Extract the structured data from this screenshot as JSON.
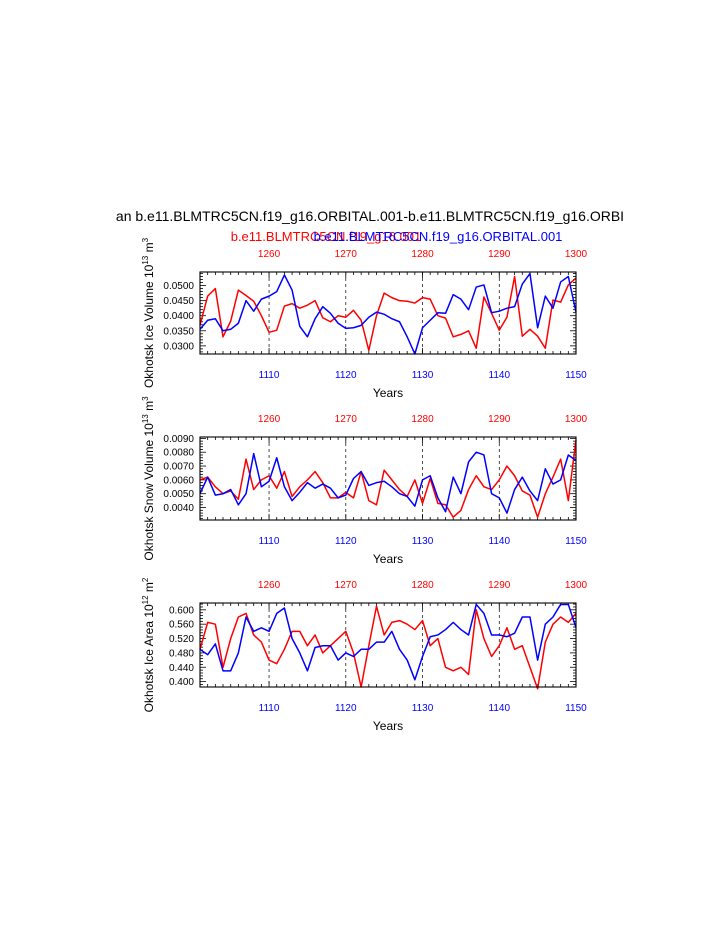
{
  "page_title": "an b.e11.BLMTRC5CN.f19_g16.ORBITAL.001-b.e11.BLMTRC5CN.f19_g16.ORBI",
  "legend": {
    "red_run": "b.e11.BLMTRC5CN.f19_g16.001",
    "blue_run": "b.e11.BLMTRC5CN.f19_g16.ORBITAL.001"
  },
  "colors": {
    "red": "#ff0000",
    "blue": "#0000ff",
    "axis": "#000000",
    "grid": "#000000"
  },
  "chart_data": [
    {
      "type": "line",
      "title": "Okhotsk Ice Volume",
      "ylabel": "Okhotsk Ice Volume 10",
      "ylabel_exp": "13",
      "ylabel_unit": " m",
      "ylabel_unit_exp": "3",
      "xlabel": "Years",
      "ylim": [
        0.0273,
        0.0545
      ],
      "yticks": [
        0.03,
        0.035,
        0.04,
        0.045,
        0.05
      ],
      "yticklabels": [
        "0.0300",
        "0.0350",
        "0.0400",
        "0.0450",
        "0.0500"
      ],
      "x_bottom": {
        "range": [
          1101,
          1150
        ],
        "ticks": [
          1110,
          1120,
          1130,
          1140,
          1150
        ],
        "color": "blue"
      },
      "x_top": {
        "range": [
          1251,
          1300
        ],
        "ticks": [
          1260,
          1270,
          1280,
          1290,
          1300
        ],
        "color": "red"
      },
      "grid": "dashed vertical at decade ticks",
      "series": [
        {
          "name": "b.e11.BLMTRC5CN.f19_g16.001",
          "color": "red",
          "x_axis": "top",
          "x_start": 1251,
          "values": [
            0.0368,
            0.0465,
            0.049,
            0.033,
            0.0382,
            0.0485,
            0.0467,
            0.0448,
            0.04,
            0.0345,
            0.0352,
            0.0432,
            0.044,
            0.0425,
            0.0435,
            0.045,
            0.0393,
            0.038,
            0.04,
            0.0395,
            0.0418,
            0.0385,
            0.0285,
            0.04,
            0.0475,
            0.046,
            0.045,
            0.0448,
            0.0442,
            0.046,
            0.0455,
            0.04,
            0.0392,
            0.033,
            0.0338,
            0.035,
            0.0292,
            0.0462,
            0.0408,
            0.0352,
            0.0395,
            0.053,
            0.0332,
            0.0355,
            0.0332,
            0.0292,
            0.0452,
            0.0445,
            0.0502,
            0.0525
          ]
        },
        {
          "name": "b.e11.BLMTRC5CN.f19_g16.ORBITAL.001",
          "color": "blue",
          "x_axis": "bottom",
          "x_start": 1101,
          "values": [
            0.0355,
            0.0385,
            0.039,
            0.035,
            0.0355,
            0.0375,
            0.045,
            0.0415,
            0.0455,
            0.0465,
            0.048,
            0.0535,
            0.0485,
            0.0365,
            0.033,
            0.039,
            0.043,
            0.0408,
            0.0375,
            0.0358,
            0.036,
            0.0368,
            0.0395,
            0.0412,
            0.0405,
            0.039,
            0.038,
            0.033,
            0.0273,
            0.036,
            0.0385,
            0.041,
            0.0408,
            0.047,
            0.0455,
            0.042,
            0.0495,
            0.0502,
            0.041,
            0.0415,
            0.0425,
            0.043,
            0.0505,
            0.054,
            0.036,
            0.0465,
            0.0425,
            0.0512,
            0.053,
            0.0412
          ]
        }
      ]
    },
    {
      "type": "line",
      "title": "Okhotsk Snow Volume",
      "ylabel": "Okhotsk Snow Volume 10",
      "ylabel_exp": "13",
      "ylabel_unit": " m",
      "ylabel_unit_exp": "3",
      "xlabel": "Years",
      "ylim": [
        0.0031,
        0.0091
      ],
      "yticks": [
        0.004,
        0.005,
        0.006,
        0.007,
        0.008,
        0.009
      ],
      "yticklabels": [
        "0.0040",
        "0.0050",
        "0.0060",
        "0.0070",
        "0.0080",
        "0.0090"
      ],
      "x_bottom": {
        "range": [
          1101,
          1150
        ],
        "ticks": [
          1110,
          1120,
          1130,
          1140,
          1150
        ],
        "color": "blue"
      },
      "x_top": {
        "range": [
          1251,
          1300
        ],
        "ticks": [
          1260,
          1270,
          1280,
          1290,
          1300
        ],
        "color": "red"
      },
      "grid": "dashed vertical at decade ticks",
      "series": [
        {
          "name": "b.e11.BLMTRC5CN.f19_g16.001",
          "color": "red",
          "x_axis": "top",
          "x_start": 1251,
          "values": [
            0.006,
            0.0062,
            0.0055,
            0.005,
            0.0052,
            0.0046,
            0.0075,
            0.0053,
            0.006,
            0.0063,
            0.0054,
            0.0066,
            0.0048,
            0.0055,
            0.006,
            0.0066,
            0.0058,
            0.0047,
            0.0047,
            0.0051,
            0.0047,
            0.0066,
            0.0045,
            0.0042,
            0.0067,
            0.006,
            0.0053,
            0.0048,
            0.006,
            0.0043,
            0.0061,
            0.0043,
            0.0042,
            0.0033,
            0.0038,
            0.0053,
            0.0063,
            0.0055,
            0.0053,
            0.006,
            0.007,
            0.0063,
            0.0052,
            0.0049,
            0.0033,
            0.005,
            0.0062,
            0.0075,
            0.0045,
            0.0089
          ]
        },
        {
          "name": "b.e11.BLMTRC5CN.f19_g16.ORBITAL.001",
          "color": "blue",
          "x_axis": "bottom",
          "x_start": 1101,
          "values": [
            0.005,
            0.0062,
            0.0049,
            0.005,
            0.0053,
            0.0042,
            0.005,
            0.0079,
            0.0055,
            0.0059,
            0.0076,
            0.0055,
            0.0045,
            0.0051,
            0.0058,
            0.0054,
            0.0057,
            0.0054,
            0.0047,
            0.0049,
            0.0061,
            0.0066,
            0.0056,
            0.0058,
            0.0059,
            0.0055,
            0.005,
            0.0048,
            0.0041,
            0.006,
            0.0063,
            0.0047,
            0.0037,
            0.0062,
            0.005,
            0.0073,
            0.008,
            0.0078,
            0.005,
            0.0047,
            0.0036,
            0.0053,
            0.0062,
            0.0052,
            0.0045,
            0.0068,
            0.0057,
            0.006,
            0.0078,
            0.0074
          ]
        }
      ]
    },
    {
      "type": "line",
      "title": "Okhotsk Ice Area",
      "ylabel": "Okhotsk Ice Area 10",
      "ylabel_exp": "12",
      "ylabel_unit": " m",
      "ylabel_unit_exp": "2",
      "xlabel": "Years",
      "ylim": [
        0.385,
        0.619
      ],
      "yticks": [
        0.4,
        0.44,
        0.48,
        0.52,
        0.56,
        0.6
      ],
      "yticklabels": [
        "0.400",
        "0.440",
        "0.480",
        "0.520",
        "0.560",
        "0.600"
      ],
      "x_bottom": {
        "range": [
          1101,
          1150
        ],
        "ticks": [
          1110,
          1120,
          1130,
          1140,
          1150
        ],
        "color": "blue"
      },
      "x_top": {
        "range": [
          1251,
          1300
        ],
        "ticks": [
          1260,
          1270,
          1280,
          1290,
          1300
        ],
        "color": "red"
      },
      "grid": "dashed vertical at decade ticks",
      "series": [
        {
          "name": "b.e11.BLMTRC5CN.f19_g16.001",
          "color": "red",
          "x_axis": "top",
          "x_start": 1251,
          "values": [
            0.49,
            0.565,
            0.56,
            0.44,
            0.52,
            0.58,
            0.59,
            0.53,
            0.51,
            0.46,
            0.45,
            0.49,
            0.54,
            0.54,
            0.5,
            0.53,
            0.48,
            0.5,
            0.52,
            0.54,
            0.48,
            0.385,
            0.5,
            0.61,
            0.53,
            0.565,
            0.57,
            0.56,
            0.545,
            0.57,
            0.5,
            0.52,
            0.44,
            0.43,
            0.44,
            0.42,
            0.6,
            0.52,
            0.47,
            0.5,
            0.55,
            0.49,
            0.5,
            0.44,
            0.38,
            0.51,
            0.56,
            0.58,
            0.565,
            0.59
          ]
        },
        {
          "name": "b.e11.BLMTRC5CN.f19_g16.ORBITAL.001",
          "color": "blue",
          "x_axis": "bottom",
          "x_start": 1101,
          "values": [
            0.49,
            0.475,
            0.505,
            0.43,
            0.43,
            0.48,
            0.58,
            0.54,
            0.55,
            0.54,
            0.59,
            0.605,
            0.52,
            0.48,
            0.43,
            0.495,
            0.5,
            0.5,
            0.46,
            0.48,
            0.47,
            0.49,
            0.49,
            0.51,
            0.51,
            0.54,
            0.49,
            0.46,
            0.405,
            0.47,
            0.525,
            0.53,
            0.545,
            0.565,
            0.545,
            0.53,
            0.615,
            0.59,
            0.53,
            0.53,
            0.525,
            0.535,
            0.58,
            0.58,
            0.46,
            0.56,
            0.58,
            0.615,
            0.615,
            0.55
          ]
        }
      ]
    }
  ]
}
